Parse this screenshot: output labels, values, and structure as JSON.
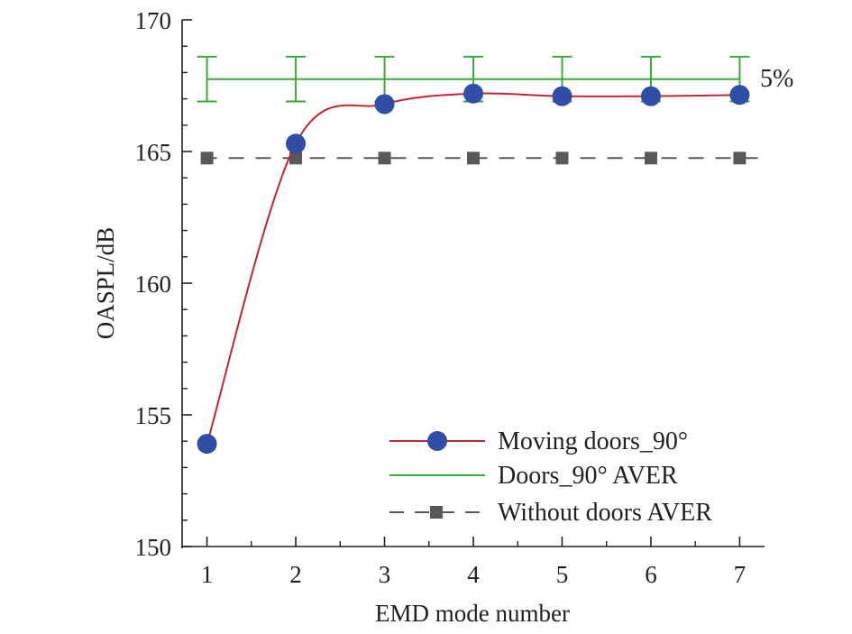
{
  "chart_data": {
    "type": "line",
    "title": "",
    "xlabel": "EMD mode number",
    "ylabel": "OASPL/dB",
    "xlim": [
      0.72,
      7.28
    ],
    "ylim": [
      150,
      170
    ],
    "xticks": [
      "1",
      "2",
      "3",
      "4",
      "5",
      "6",
      "7"
    ],
    "yticks": [
      "150",
      "155",
      "160",
      "165",
      "170"
    ],
    "grid": false,
    "legend_position": "bottom-right",
    "annotations": [
      {
        "text": "5%",
        "x": 7.0,
        "y": 167.75
      }
    ],
    "series": [
      {
        "name": "Moving doors_90°",
        "color": "#c1272d",
        "marker": "circle",
        "marker_color": "#2e4ea8",
        "line_style": "solid-smooth",
        "x": [
          1,
          2,
          3,
          4,
          5,
          6,
          7
        ],
        "y": [
          153.9,
          165.3,
          166.8,
          167.2,
          167.1,
          167.1,
          167.15
        ]
      },
      {
        "name": "Doors_90° AVER",
        "color": "#3aab3a",
        "marker": "errorbar",
        "line_style": "solid",
        "x": [
          1,
          2,
          3,
          4,
          5,
          6,
          7
        ],
        "y": [
          167.75,
          167.75,
          167.75,
          167.75,
          167.75,
          167.75,
          167.75
        ],
        "error": [
          0.85,
          0.85,
          0.85,
          0.85,
          0.85,
          0.85,
          0.85
        ]
      },
      {
        "name": "Without doors AVER",
        "color": "#595959",
        "marker": "square",
        "line_style": "dashed",
        "x": [
          1,
          2,
          3,
          4,
          5,
          6,
          7
        ],
        "y": [
          164.75,
          164.75,
          164.75,
          164.75,
          164.75,
          164.75,
          164.75
        ]
      }
    ]
  }
}
